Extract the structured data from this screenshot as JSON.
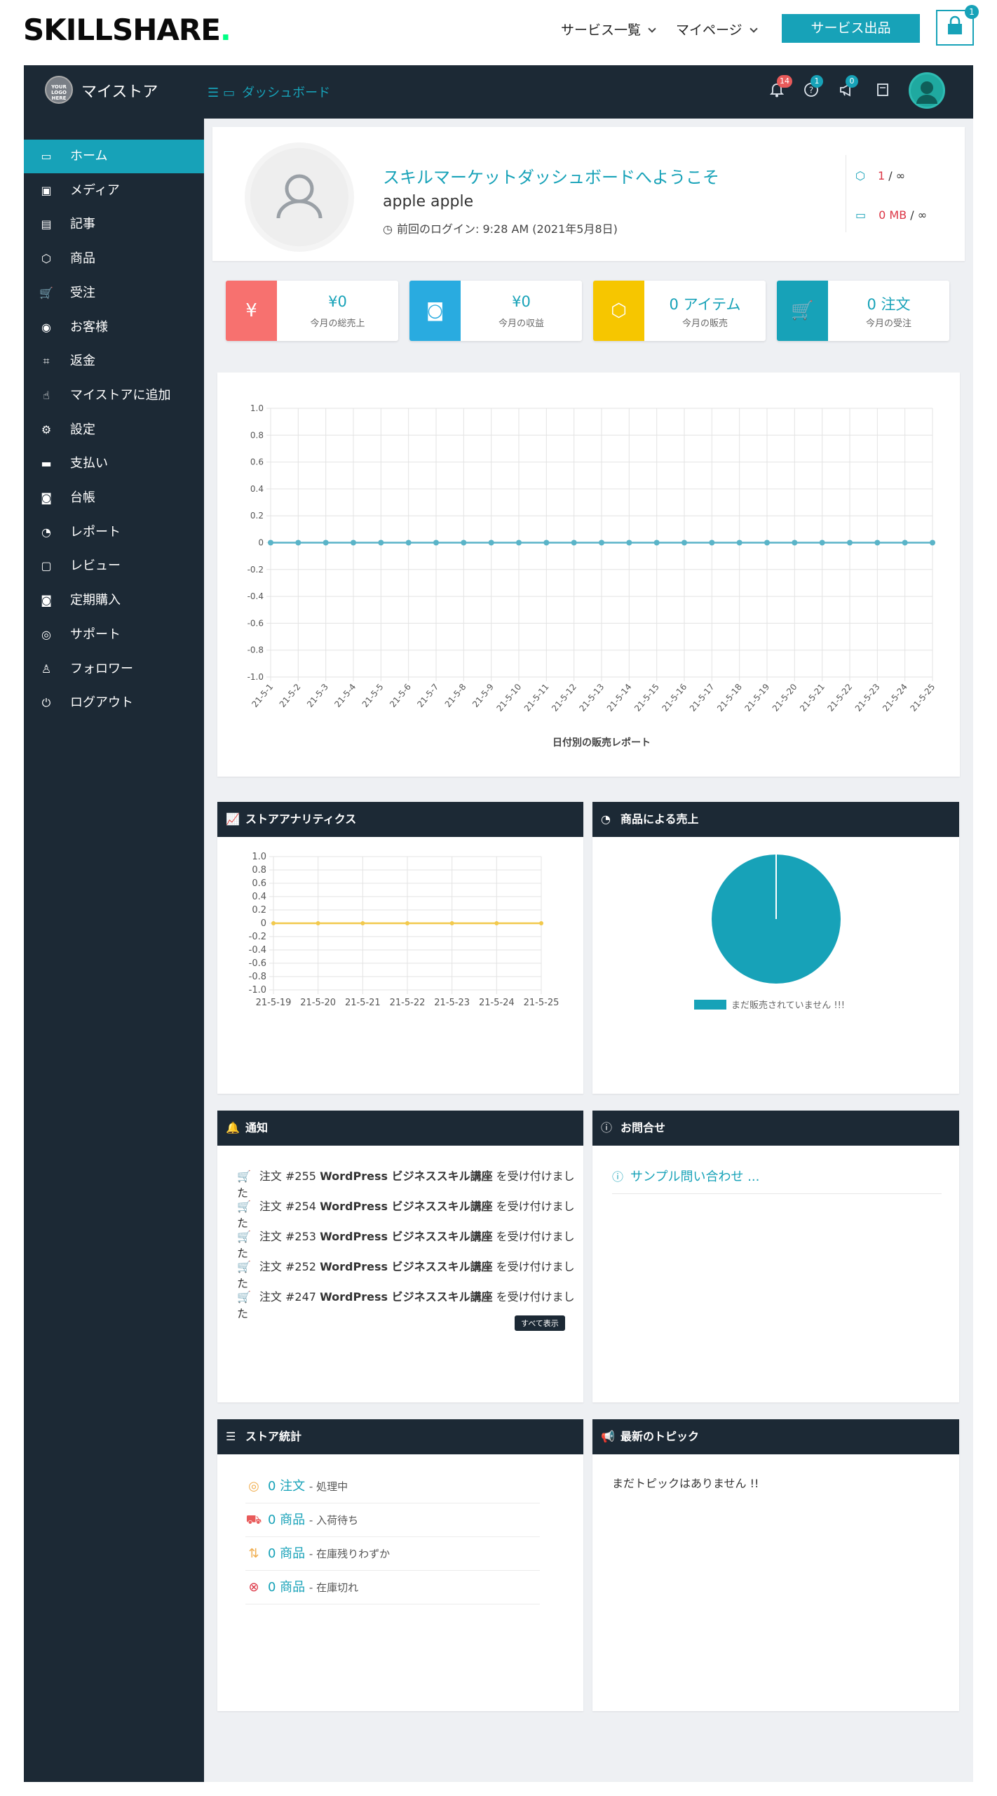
{
  "top": {
    "logo": "SKILLSHARE",
    "logo_dot": ".",
    "nav_services": "サービス一覧",
    "nav_mypage": "マイページ",
    "sell_button": "サービス出品",
    "cart_count": "1"
  },
  "header": {
    "store_logo_text": "YOUR LOGO HERE",
    "store_name": "マイストア",
    "breadcrumb": "ダッシュボード",
    "notif_count": "14",
    "help_count": "1",
    "announce_count": "0"
  },
  "sidebar": {
    "items": [
      {
        "label": "ホーム",
        "icon": "monitor-icon"
      },
      {
        "label": "メディア",
        "icon": "image-icon"
      },
      {
        "label": "記事",
        "icon": "document-icon"
      },
      {
        "label": "商品",
        "icon": "box-icon"
      },
      {
        "label": "受注",
        "icon": "cart-icon"
      },
      {
        "label": "お客様",
        "icon": "user-circle-icon"
      },
      {
        "label": "返金",
        "icon": "crop-icon"
      },
      {
        "label": "マイストアに追加",
        "icon": "hand-pointer-icon"
      },
      {
        "label": "設定",
        "icon": "gears-icon"
      },
      {
        "label": "支払い",
        "icon": "credit-card-icon"
      },
      {
        "label": "台帳",
        "icon": "money-bill-icon"
      },
      {
        "label": "レポート",
        "icon": "pie-chart-icon"
      },
      {
        "label": "レビュー",
        "icon": "comment-icon"
      },
      {
        "label": "定期購入",
        "icon": "money-bill-icon"
      },
      {
        "label": "サポート",
        "icon": "lifebuoy-icon"
      },
      {
        "label": "フォロワー",
        "icon": "shirt-icon"
      },
      {
        "label": "ログアウト",
        "icon": "power-icon"
      }
    ]
  },
  "welcome": {
    "title": "スキルマーケットダッシュボードへようこそ",
    "name": "apple apple",
    "last_login": "前回のログイン: 9:28 AM (2021年5月8日)",
    "product_quota_used": "1",
    "product_quota_total": "∞",
    "storage_used": "0 MB",
    "storage_total": "∞"
  },
  "stats": [
    {
      "value": "¥0",
      "label": "今月の総売上",
      "color": "#f7716f",
      "icon": "¥"
    },
    {
      "value": "¥0",
      "label": "今月の収益",
      "color": "#29abe0",
      "icon": "money"
    },
    {
      "value": "0 アイテム",
      "label": "今月の販売",
      "color": "#f6c600",
      "icon": "box"
    },
    {
      "value": "0 注文",
      "label": "今月の受注",
      "color": "#17a2b8",
      "icon": "cart"
    }
  ],
  "chart_data": [
    {
      "type": "line",
      "title": "",
      "xlabel": "日付別の販売レポート",
      "ylabel": "",
      "ylim": [
        -1.0,
        1.0
      ],
      "yticks": [
        "1.0",
        "0.8",
        "0.6",
        "0.4",
        "0.2",
        "0",
        "-0.2",
        "-0.4",
        "-0.6",
        "-0.8",
        "-1.0"
      ],
      "x": [
        "21-5-1",
        "21-5-2",
        "21-5-3",
        "21-5-4",
        "21-5-5",
        "21-5-6",
        "21-5-7",
        "21-5-8",
        "21-5-9",
        "21-5-10",
        "21-5-11",
        "21-5-12",
        "21-5-13",
        "21-5-14",
        "21-5-15",
        "21-5-16",
        "21-5-17",
        "21-5-18",
        "21-5-19",
        "21-5-20",
        "21-5-21",
        "21-5-22",
        "21-5-23",
        "21-5-24",
        "21-5-25"
      ],
      "series": [
        {
          "values": [
            0,
            0,
            0,
            0,
            0,
            0,
            0,
            0,
            0,
            0,
            0,
            0,
            0,
            0,
            0,
            0,
            0,
            0,
            0,
            0,
            0,
            0,
            0,
            0,
            0
          ],
          "color": "#5ab4c8"
        }
      ],
      "grid": true
    },
    {
      "type": "line",
      "title": "",
      "ylim": [
        -1.0,
        1.0
      ],
      "yticks": [
        "1.0",
        "0.8",
        "0.6",
        "0.4",
        "0.2",
        "0",
        "-0.2",
        "-0.4",
        "-0.6",
        "-0.8",
        "-1.0"
      ],
      "x": [
        "21-5-19",
        "21-5-20",
        "21-5-21",
        "21-5-22",
        "21-5-23",
        "21-5-24",
        "21-5-25"
      ],
      "series": [
        {
          "values": [
            0,
            0,
            0,
            0,
            0,
            0,
            0
          ],
          "color": "#f2c94c"
        }
      ],
      "grid": true
    },
    {
      "type": "pie",
      "title": "",
      "slices": [
        {
          "label": "まだ販売されていません !!!",
          "value": 1,
          "color": "#17a2b8"
        }
      ],
      "legend": "bottom"
    }
  ],
  "panels": {
    "analytics_title": "ストアアナリティクス",
    "sales_by_product_title": "商品による売上",
    "notifications_title": "通知",
    "inquiries_title": "お問合せ",
    "store_stats_title": "ストア統計",
    "latest_topics_title": "最新のトピック"
  },
  "notifications": [
    {
      "prefix": "注文 #255",
      "bold": "WordPress ビジネススキル講座",
      "suffix": "を受け付けました"
    },
    {
      "prefix": "注文 #254",
      "bold": "WordPress ビジネススキル講座",
      "suffix": "を受け付けました"
    },
    {
      "prefix": "注文 #253",
      "bold": "WordPress ビジネススキル講座",
      "suffix": "を受け付けました"
    },
    {
      "prefix": "注文 #252",
      "bold": "WordPress ビジネススキル講座",
      "suffix": "を受け付けました"
    },
    {
      "prefix": "注文 #247",
      "bold": "WordPress ビジネススキル講座",
      "suffix": "を受け付けました"
    }
  ],
  "view_all": "すべて表示",
  "inquiry_sample": "サンプル問い合わせ ...",
  "store_stats": [
    {
      "num": "0 注文",
      "desc": "- 処理中",
      "icon": "lifebuoy-icon",
      "color": "#f0ad4e"
    },
    {
      "num": "0 商品",
      "desc": "- 入荷待ち",
      "icon": "truck-icon",
      "color": "#e85a5a"
    },
    {
      "num": "0 商品",
      "desc": "- 在庫残りわずか",
      "icon": "sort-icon",
      "color": "#f0ad4e"
    },
    {
      "num": "0 商品",
      "desc": "- 在庫切れ",
      "icon": "times-circle-icon",
      "color": "#dc3545"
    }
  ],
  "no_topics": "まだトピックはありません !!"
}
